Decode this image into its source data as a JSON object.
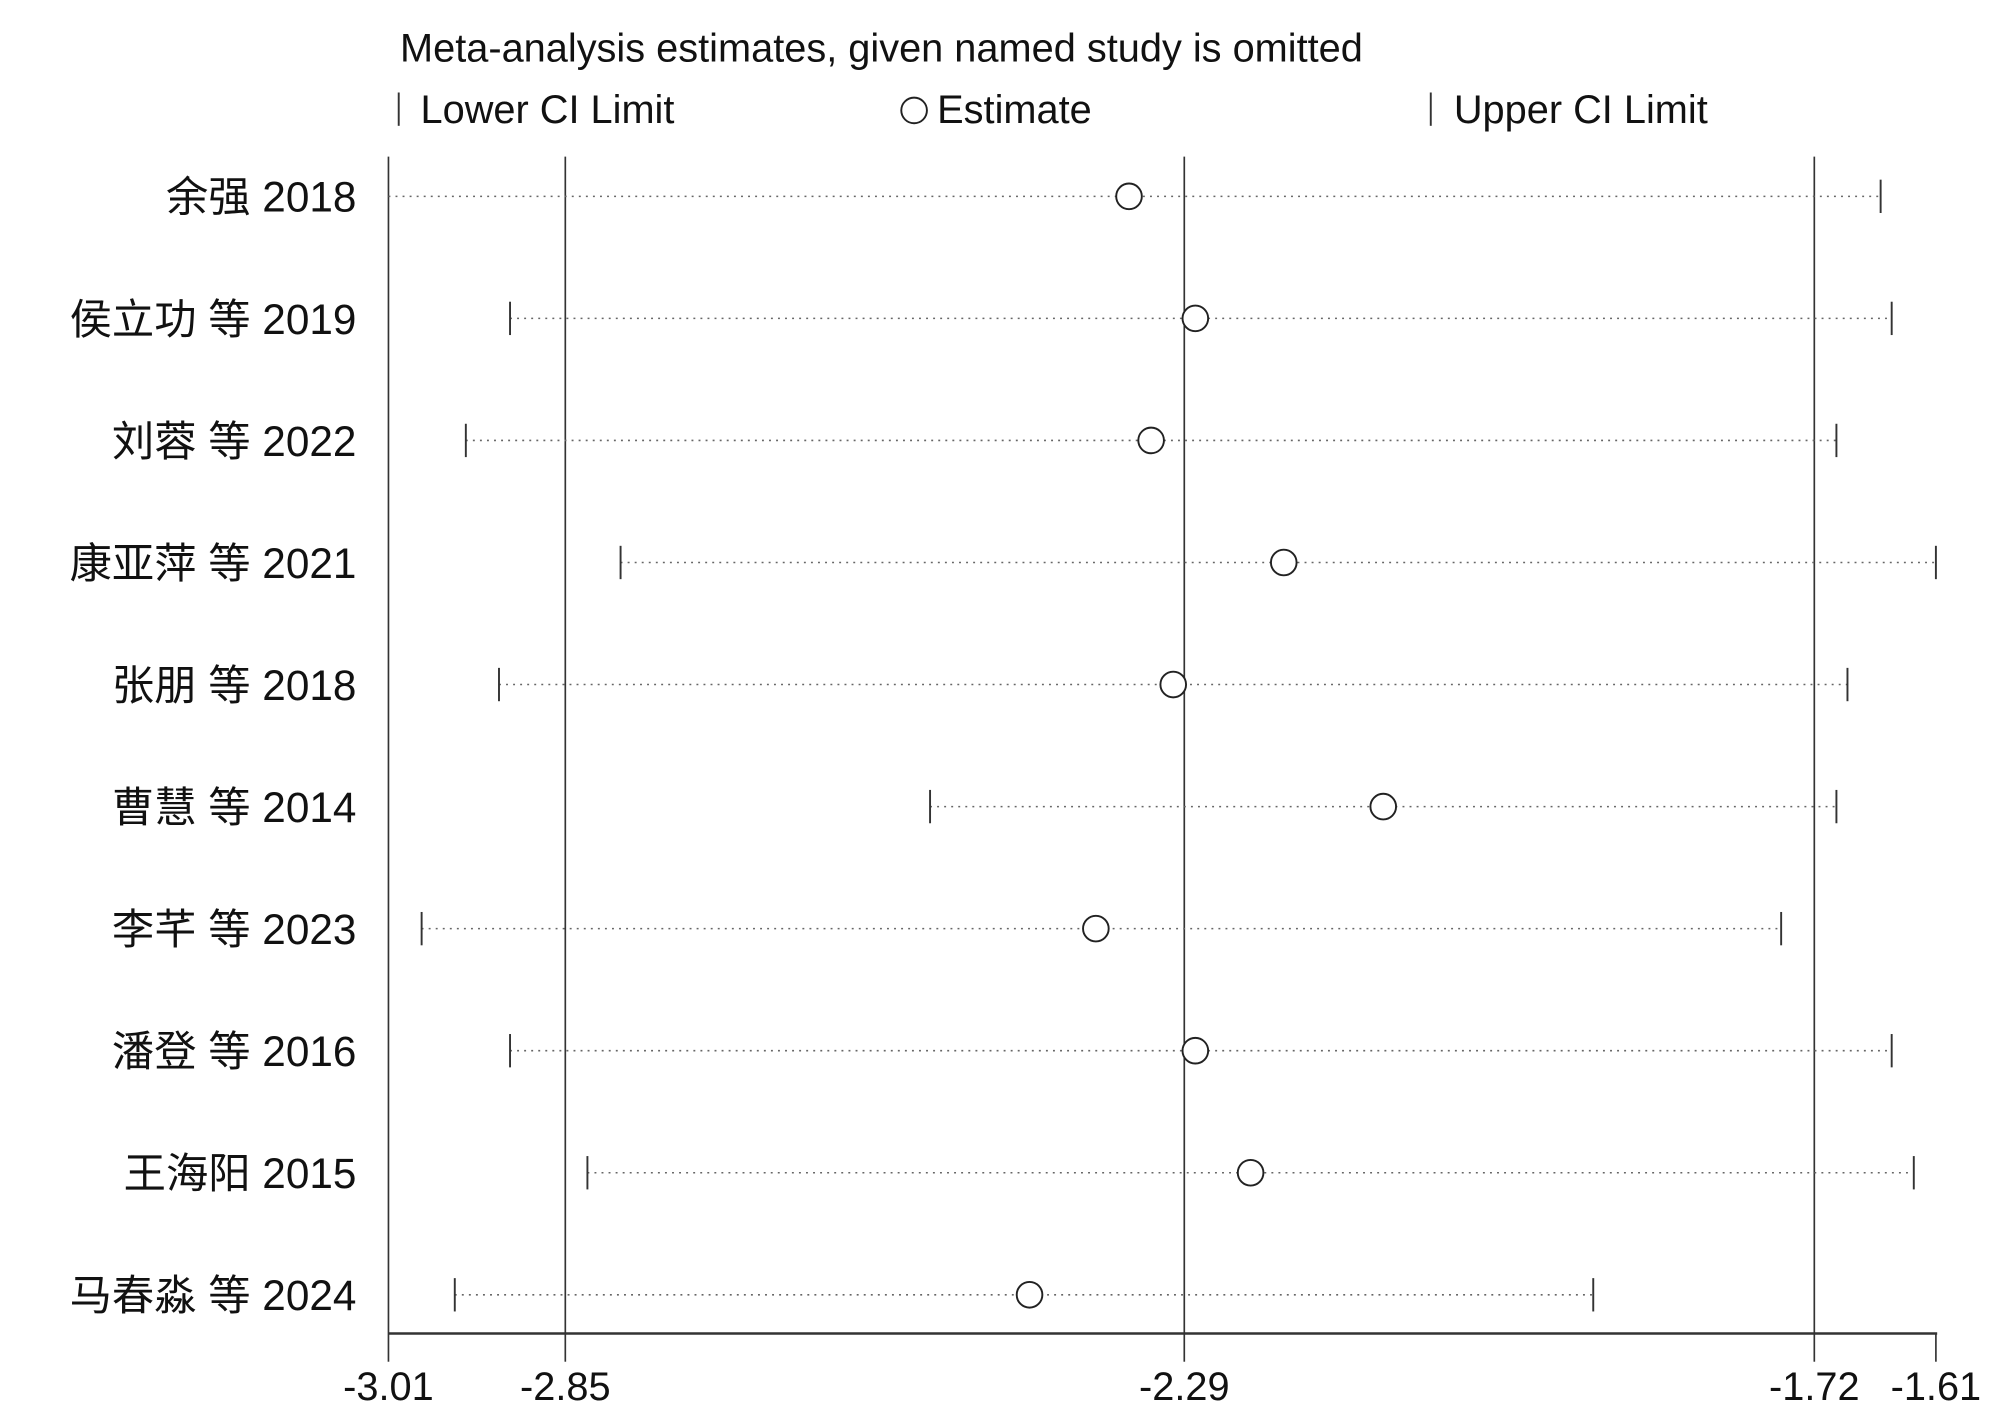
{
  "chart_data": {
    "type": "scatter",
    "title": "Meta-analysis estimates, given named study is omitted",
    "legend": {
      "lower": "Lower CI Limit",
      "estimate": "Estimate",
      "upper": "Upper CI Limit",
      "placement": "top"
    },
    "xlim": [
      -3.01,
      -1.61
    ],
    "xticks": [
      -3.01,
      -2.85,
      -2.29,
      -1.72,
      -1.61
    ],
    "xtick_labels": [
      "-3.01",
      "-2.85",
      "-2.29",
      "-1.72",
      "-1.61"
    ],
    "reference_lines": [
      -2.85,
      -2.29,
      -1.72
    ],
    "studies": [
      {
        "label": "余强 2018",
        "lower": -3.01,
        "estimate": -2.34,
        "upper": -1.66
      },
      {
        "label": "侯立功 等 2019",
        "lower": -2.9,
        "estimate": -2.28,
        "upper": -1.65
      },
      {
        "label": "刘蓉 等 2022",
        "lower": -2.94,
        "estimate": -2.32,
        "upper": -1.7
      },
      {
        "label": "康亚萍 等 2021",
        "lower": -2.8,
        "estimate": -2.2,
        "upper": -1.61
      },
      {
        "label": "张朋 等 2018",
        "lower": -2.91,
        "estimate": -2.3,
        "upper": -1.69
      },
      {
        "label": "曹慧 等 2014",
        "lower": -2.52,
        "estimate": -2.11,
        "upper": -1.7
      },
      {
        "label": "李芊 等 2023",
        "lower": -2.98,
        "estimate": -2.37,
        "upper": -1.75
      },
      {
        "label": "潘登 等 2016",
        "lower": -2.9,
        "estimate": -2.28,
        "upper": -1.65
      },
      {
        "label": "王海阳 2015",
        "lower": -2.83,
        "estimate": -2.23,
        "upper": -1.63
      },
      {
        "label": "马春淼 等 2024",
        "lower": -2.95,
        "estimate": -2.43,
        "upper": -1.92
      }
    ]
  }
}
